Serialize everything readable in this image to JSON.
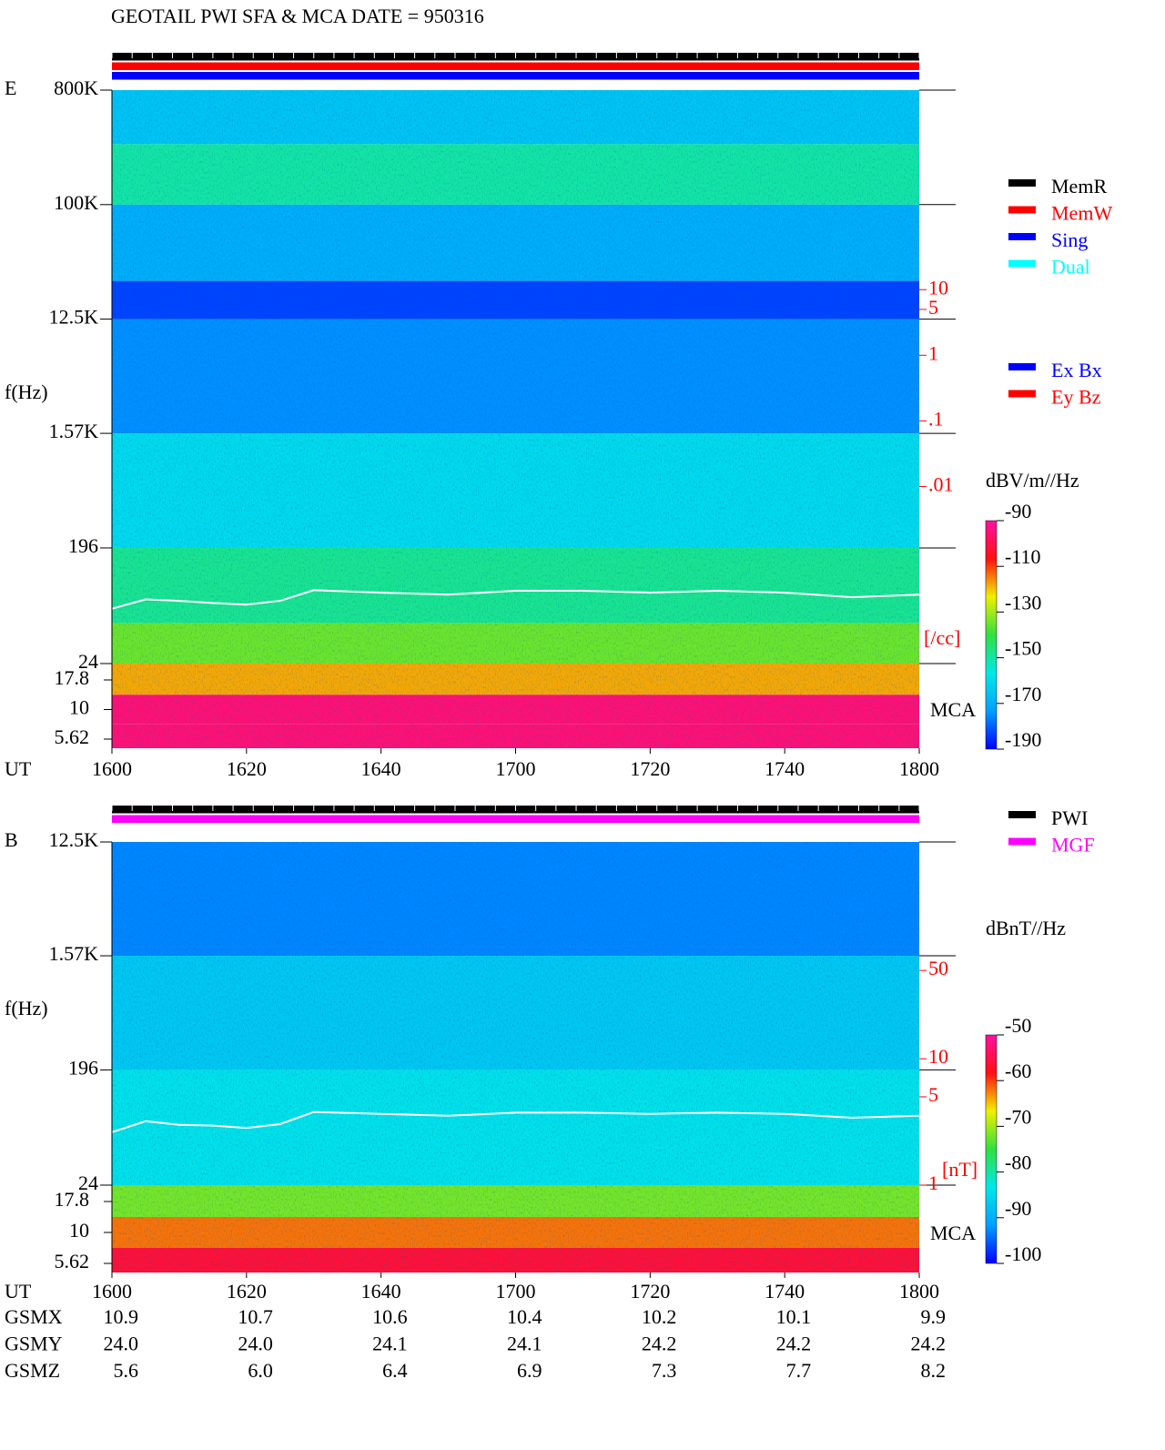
{
  "chart_data": [
    {
      "type": "spectrogram",
      "title": "GEOTAIL  PWI SFA & MCA  DATE = 950316",
      "panel_label": "E",
      "y_label": "f(Hz)",
      "x_label": "UT",
      "xlim": [
        0,
        120
      ],
      "xticks": [
        {
          "value": 0,
          "label": "1600"
        },
        {
          "value": 20,
          "label": "1620"
        },
        {
          "value": 40,
          "label": "1640"
        },
        {
          "value": 60,
          "label": "1700"
        },
        {
          "value": 80,
          "label": "1720"
        },
        {
          "value": 100,
          "label": "1740"
        },
        {
          "value": 120,
          "label": "1800"
        }
      ],
      "ylim": [
        24,
        800000
      ],
      "log_scale": true,
      "yticks": [
        {
          "value": 800000,
          "label": "800K"
        },
        {
          "value": 100000,
          "label": "100K"
        },
        {
          "value": 12500,
          "label": "12.5K"
        },
        {
          "value": 1570,
          "label": "1.57K"
        },
        196,
        24
      ],
      "bands": [
        {
          "from": 800000,
          "to": 300000,
          "value": -165
        },
        {
          "from": 300000,
          "to": 100000,
          "value": -150
        },
        {
          "from": 100000,
          "to": 25000,
          "value": -170
        },
        {
          "from": 25000,
          "to": 12500,
          "value": -183
        },
        {
          "from": 12500,
          "to": 1570,
          "value": -175
        },
        {
          "from": 1570,
          "to": 196,
          "value": -160
        },
        {
          "from": 196,
          "to": 50,
          "value": -148
        },
        {
          "from": 50,
          "to": 24,
          "value": -135
        }
      ],
      "mca_label": "MCA",
      "mca_ticks": [
        17.8,
        10,
        5.62
      ],
      "mca_values": [
        -118,
        -95,
        -95
      ],
      "plasma_line": {
        "color": "#ffffff",
        "x": [
          0,
          5,
          10,
          15,
          20,
          25,
          30,
          40,
          50,
          60,
          70,
          80,
          90,
          100,
          110,
          120
        ],
        "values": [
          65,
          77,
          75,
          72,
          70,
          75,
          91,
          87,
          84,
          90,
          90,
          87,
          90,
          87,
          80,
          84
        ]
      },
      "colorbar": {
        "label": "dBV/m//Hz",
        "lim": [
          -190,
          -90
        ],
        "ticks": [
          -90,
          -110,
          -130,
          -150,
          -170,
          -190
        ],
        "colors": [
          "#0000ff",
          "#00a0ff",
          "#00e8e8",
          "#30e040",
          "#f0f000",
          "#ff1010",
          "#ff10a0"
        ]
      },
      "right_scale": {
        "label": "[/cc]",
        "color": "#ff0000",
        "lim": [
          2e-05,
          11000
        ],
        "ticks": [
          10,
          5,
          1,
          {
            "value": 0.1,
            "label": ".1"
          },
          {
            "value": 0.01,
            "label": ".01"
          }
        ]
      },
      "legends": [
        [
          {
            "name": "MemR",
            "color": "#000000"
          },
          {
            "name": "MemW",
            "color": "#ff0000"
          },
          {
            "name": "Sing",
            "color": "#0000ff"
          },
          {
            "name": "Dual",
            "color": "#00ffff"
          }
        ],
        [
          {
            "name": "Ex Bx",
            "color": "#0000ff"
          },
          {
            "name": "Ey Bz",
            "color": "#ff0000"
          }
        ]
      ]
    },
    {
      "type": "spectrogram",
      "panel_label": "B",
      "y_label": "f(Hz)",
      "x_label": "UT",
      "xlim": [
        0,
        120
      ],
      "xticks": [
        {
          "value": 0,
          "label": "1600"
        },
        {
          "value": 20,
          "label": "1620"
        },
        {
          "value": 40,
          "label": "1640"
        },
        {
          "value": 60,
          "label": "1700"
        },
        {
          "value": 80,
          "label": "1720"
        },
        {
          "value": 100,
          "label": "1740"
        },
        {
          "value": 120,
          "label": "1800"
        }
      ],
      "ylim": [
        24,
        12500
      ],
      "log_scale": true,
      "yticks": [
        {
          "value": 12500,
          "label": "12.5K"
        },
        {
          "value": 1570,
          "label": "1.57K"
        },
        196,
        24
      ],
      "bands": [
        {
          "from": 12500,
          "to": 1570,
          "value": -93
        },
        {
          "from": 1570,
          "to": 196,
          "value": -87
        },
        {
          "from": 196,
          "to": 24,
          "value": -84
        }
      ],
      "mca_label": "MCA",
      "mca_ticks": [
        17.8,
        10,
        5.62
      ],
      "mca_values": [
        -72,
        -62,
        -56
      ],
      "plasma_line": {
        "color": "#ffffff",
        "x": [
          0,
          5,
          10,
          15,
          20,
          25,
          30,
          40,
          50,
          60,
          70,
          80,
          90,
          100,
          110,
          120
        ],
        "values": [
          63,
          77,
          72,
          71,
          68,
          73,
          91,
          88,
          85,
          90,
          90,
          88,
          90,
          88,
          82,
          85
        ]
      },
      "colorbar": {
        "label": "dBnT//Hz",
        "lim": [
          -100,
          -50
        ],
        "ticks": [
          -50,
          -60,
          -70,
          -80,
          -90,
          -100
        ],
        "colors": [
          "#0000ff",
          "#00a0ff",
          "#00e8e8",
          "#30e040",
          "#f0f000",
          "#ff1010",
          "#ff10a0"
        ]
      },
      "right_scale": {
        "label": "[nT]",
        "color": "#ff0000",
        "lim": [
          1,
          520
        ],
        "ticks": [
          50,
          10,
          5,
          1
        ]
      },
      "legends": [
        [
          {
            "name": "PWI",
            "color": "#000000"
          },
          {
            "name": "MGF",
            "color": "#ff00ff"
          }
        ]
      ]
    }
  ],
  "orbit": [
    {
      "name": "GSMX",
      "values": [
        "10.9",
        "10.7",
        "10.6",
        "10.4",
        "10.2",
        "10.1",
        "9.9"
      ]
    },
    {
      "name": "GSMY",
      "values": [
        "24.0",
        "24.0",
        "24.1",
        "24.1",
        "24.2",
        "24.2",
        "24.2"
      ]
    },
    {
      "name": "GSMZ",
      "values": [
        "5.6",
        "6.0",
        "6.4",
        "6.9",
        "7.3",
        "7.7",
        "8.2"
      ]
    }
  ]
}
